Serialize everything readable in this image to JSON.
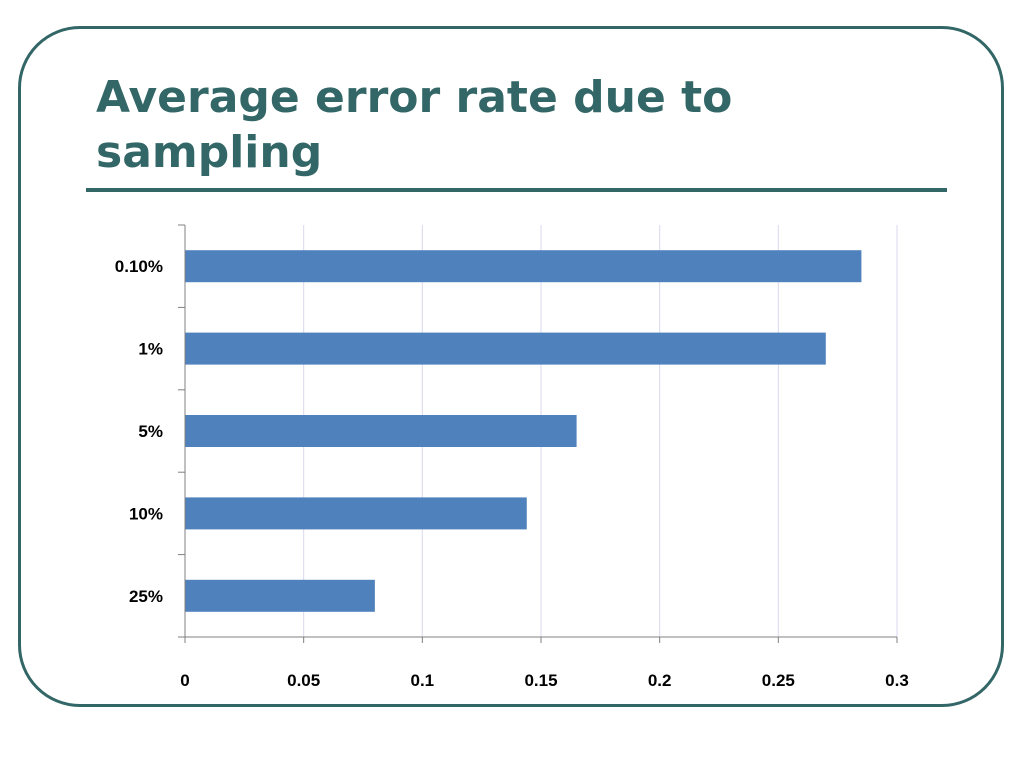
{
  "slide": {
    "title": "Average error rate due to sampling"
  },
  "colors": {
    "frame": "#336666",
    "title": "#336666",
    "bar": "#4F81BD",
    "gridline": "#D9D9F0",
    "axis": "#808080"
  },
  "chart_data": {
    "type": "bar",
    "orientation": "horizontal",
    "title": "",
    "xlabel": "",
    "ylabel": "",
    "categories": [
      "0.10%",
      "1%",
      "5%",
      "10%",
      "25%"
    ],
    "values": [
      0.285,
      0.27,
      0.165,
      0.144,
      0.08
    ],
    "xlim": [
      0,
      0.3
    ],
    "x_ticks": [
      0,
      0.05,
      0.1,
      0.15,
      0.2,
      0.25,
      0.3
    ],
    "x_tick_labels": [
      "0",
      "0.05",
      "0.1",
      "0.15",
      "0.2",
      "0.25",
      "0.3"
    ],
    "grid": true,
    "legend": "none"
  }
}
